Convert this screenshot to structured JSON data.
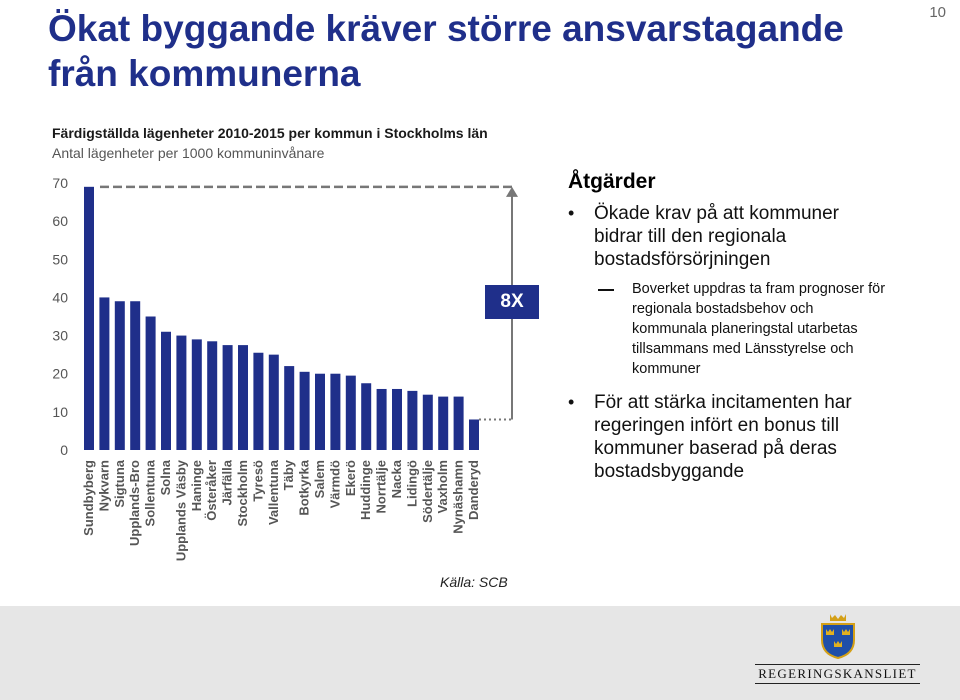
{
  "page": {
    "number": "10"
  },
  "slide": {
    "title": "Ökat byggande kräver större ansvarstagande från kommunerna"
  },
  "chart_data": {
    "type": "bar",
    "title": "Färdigställda lägenheter 2010-2015 per kommun i Stockholms län",
    "subtitle": "Antal lägenheter per 1000 kommuninvånare",
    "categories": [
      "Sundbyberg",
      "Nykvarn",
      "Sigtuna",
      "Upplands-Bro",
      "Sollentuna",
      "Solna",
      "Upplands Väsby",
      "Haninge",
      "Österåker",
      "Järfälla",
      "Stockholm",
      "Tyresö",
      "Vallentuna",
      "Täby",
      "Botkyrka",
      "Salem",
      "Värmdö",
      "Ekerö",
      "Huddinge",
      "Norrtälje",
      "Nacka",
      "Lidingö",
      "Södertälje",
      "Vaxholm",
      "Nynäshamn",
      "Danderyd"
    ],
    "values": [
      69,
      40,
      39,
      39,
      35,
      31,
      30,
      29,
      28.5,
      27.5,
      27.5,
      25.5,
      25,
      22,
      20.5,
      20,
      20,
      19.5,
      17.5,
      16,
      16,
      15.5,
      14.5,
      14,
      14,
      8
    ],
    "yticks": [
      "0",
      "10",
      "20",
      "30",
      "40",
      "50",
      "60",
      "70"
    ],
    "ylim": [
      0,
      70
    ],
    "color": "#1f2f8a",
    "grid": false,
    "annotation": "8X",
    "source": "Källa: SCB"
  },
  "actions": {
    "heading": "Åtgärder",
    "bullet1": "Ökade krav på att kommuner bidrar till den regionala bostadsförsörjningen",
    "sub1": "Boverket uppdras ta fram prognoser för regionala bostadsbehov och kommunala planeringstal utarbetas tillsammans med Länsstyrelse och kommuner",
    "bullet2": "För att stärka incitamenten har regeringen infört en bonus till kommuner baserad på deras bostadsbyggande"
  },
  "footer": {
    "logo_text": "REGERINGSKANSLIET",
    "crest_icon": "three-crowns-crest-icon",
    "band_color": "#e6e6e6"
  }
}
